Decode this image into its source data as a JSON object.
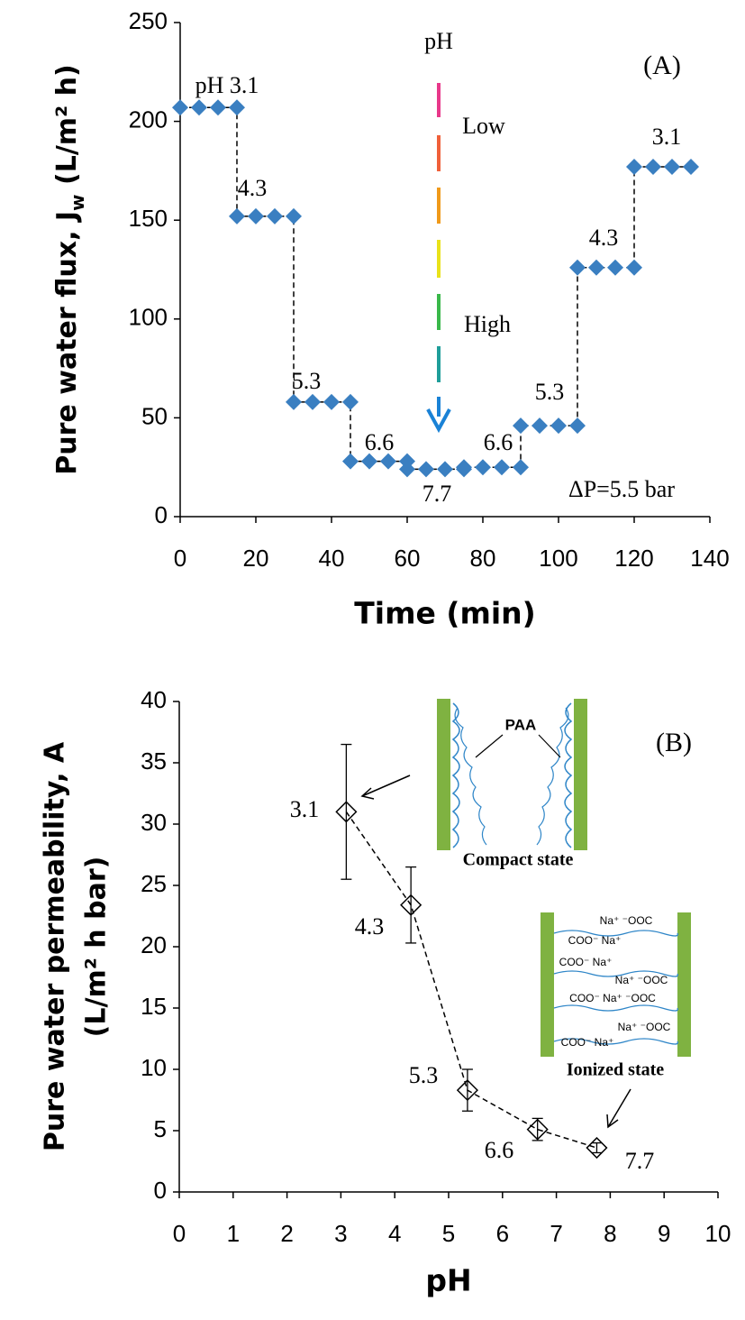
{
  "chart_data": [
    {
      "type": "line",
      "ylabel": [
        "Pure water flux, J",
        "w",
        " (L/m² h)"
      ],
      "xlabel": "Time (min)",
      "x": [
        0,
        5,
        10,
        15,
        15,
        20,
        25,
        30,
        30,
        35,
        40,
        45,
        45,
        50,
        55,
        60,
        60,
        65,
        70,
        75,
        75,
        80,
        85,
        90,
        90,
        95,
        100,
        105,
        105,
        110,
        115,
        120,
        120,
        125,
        130,
        135
      ],
      "series": [
        {
          "color": "#3a7fc1",
          "values": [
            207,
            207,
            207,
            207,
            152,
            152,
            152,
            152,
            58,
            58,
            58,
            58,
            28,
            28,
            28,
            28,
            24,
            24,
            24,
            24,
            25,
            25,
            25,
            25,
            46,
            46,
            46,
            46,
            126,
            126,
            126,
            126,
            177,
            177,
            177,
            177
          ]
        }
      ],
      "xlim": [
        0,
        140
      ],
      "xticks": [
        0,
        20,
        40,
        60,
        80,
        100,
        120,
        140
      ],
      "ylim": [
        0,
        250
      ],
      "yticks": [
        0,
        50,
        100,
        150,
        200,
        250
      ],
      "line_style": "dashed",
      "annotations": [
        "pH 3.1",
        "4.3",
        "5.3",
        "6.6",
        "7.7",
        "6.6",
        "5.3",
        "4.3",
        "3.1",
        "(A)",
        "ΔP=5.5 bar",
        "pH",
        "Low",
        "High"
      ]
    },
    {
      "type": "scatter",
      "ylabel": [
        "Pure water permeability, A",
        "(L/m² h bar)"
      ],
      "xlabel": "pH",
      "x": [
        3.1,
        4.3,
        5.35,
        6.65,
        7.75
      ],
      "values": [
        31,
        23.4,
        8.3,
        5.1,
        3.6
      ],
      "errors": [
        5.5,
        3.1,
        1.7,
        0.9,
        0.4
      ],
      "color": "#000000",
      "xlim": [
        0,
        10
      ],
      "xticks": [
        0,
        1,
        2,
        3,
        4,
        5,
        6,
        7,
        8,
        9,
        10
      ],
      "ylim": [
        0,
        40
      ],
      "yticks": [
        0,
        5,
        10,
        15,
        20,
        25,
        30,
        35,
        40
      ],
      "line_style": "dashed",
      "annotations": [
        "3.1",
        "4.3",
        "5.3",
        "6.6",
        "7.7",
        "(B)",
        "PAA",
        "Compact state",
        "Ionized state",
        "Na⁺ ⁻OOC",
        "COO⁻ Na⁺",
        "COO⁻ Na⁺",
        "Na⁺ ⁻OOC",
        "COO⁻ Na⁺ ⁻OOC",
        "Na⁺ ⁻OOC",
        "COO⁻ Na⁺"
      ]
    }
  ]
}
